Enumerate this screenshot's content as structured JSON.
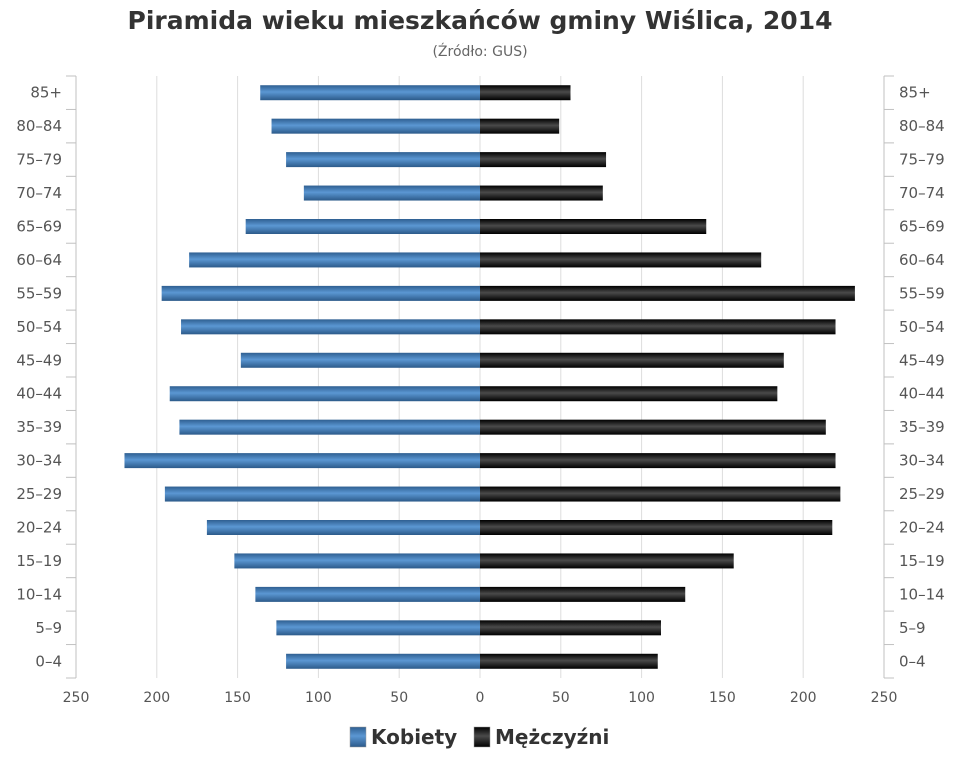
{
  "chart_data": {
    "type": "bar",
    "orientation": "horizontal-pyramid",
    "title": "Piramida wieku mieszkańców gminy Wiślica, 2014",
    "subtitle": "(Źródło: GUS)",
    "categories": [
      "85+",
      "80–84",
      "75–79",
      "70–74",
      "65–69",
      "60–64",
      "55–59",
      "50–54",
      "45–49",
      "40–44",
      "35–39",
      "30–34",
      "25–29",
      "20–24",
      "15–19",
      "10–14",
      "5–9",
      "0–4"
    ],
    "series": [
      {
        "name": "Kobiety",
        "color": "#3a78b5",
        "values": [
          136,
          129,
          120,
          109,
          145,
          180,
          197,
          185,
          148,
          192,
          186,
          220,
          195,
          169,
          152,
          139,
          126,
          120
        ]
      },
      {
        "name": "Mężczyźni",
        "color": "#151515",
        "values": [
          56,
          49,
          78,
          76,
          140,
          174,
          232,
          220,
          188,
          184,
          214,
          220,
          223,
          218,
          157,
          127,
          112,
          110
        ]
      }
    ],
    "xticks": [
      "250",
      "200",
      "150",
      "100",
      "50",
      "0",
      "50",
      "100",
      "150",
      "200",
      "250"
    ],
    "xlim": [
      -250,
      250
    ],
    "grid": true,
    "legend": "bottom-center"
  }
}
